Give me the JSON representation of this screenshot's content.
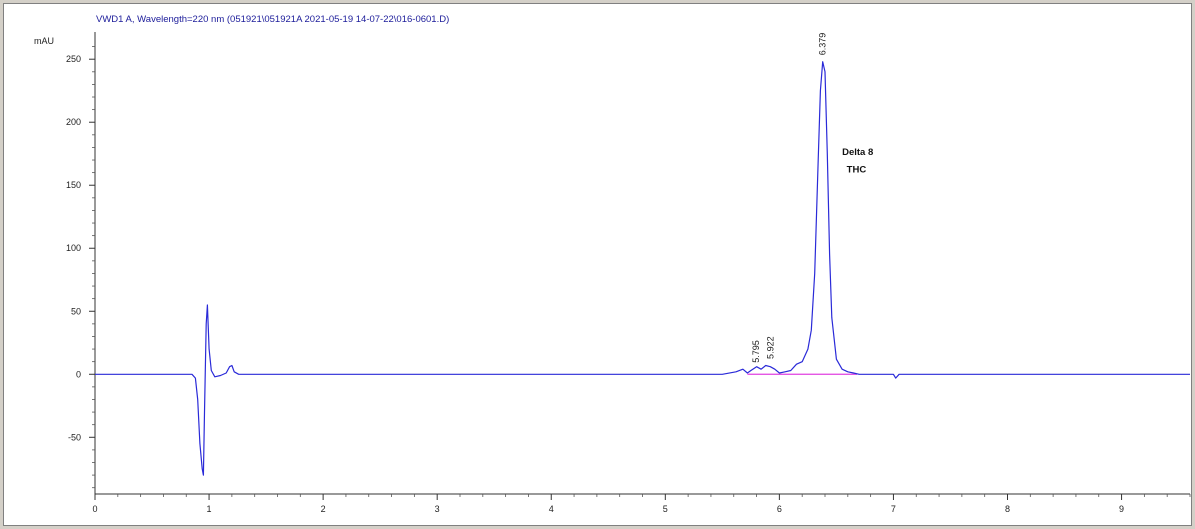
{
  "chart_data": {
    "type": "line",
    "title": "VWD1 A, Wavelength=220 nm (051921\\051921A 2021-05-19 14-07-22\\016-0601.D)",
    "ylabel": "mAU",
    "xlabel": "",
    "xlim": [
      0,
      9.6
    ],
    "ylim": [
      -95,
      270
    ],
    "x_ticks": [
      0,
      1,
      2,
      3,
      4,
      5,
      6,
      7,
      8,
      9
    ],
    "y_ticks": [
      -50,
      0,
      50,
      100,
      150,
      200,
      250
    ],
    "series": [
      {
        "color": "#2a2ad8",
        "x": [
          0,
          0.5,
          0.85,
          0.88,
          0.9,
          0.92,
          0.94,
          0.95,
          0.96,
          0.975,
          0.985,
          1.0,
          1.02,
          1.05,
          1.1,
          1.15,
          1.18,
          1.2,
          1.22,
          1.26,
          1.5,
          2.0,
          3.0,
          4.0,
          5.0,
          5.5,
          5.62,
          5.68,
          5.72,
          5.75,
          5.8,
          5.84,
          5.88,
          5.92,
          5.96,
          6.0,
          6.05,
          6.1,
          6.15,
          6.2,
          6.25,
          6.28,
          6.31,
          6.34,
          6.36,
          6.38,
          6.4,
          6.42,
          6.44,
          6.46,
          6.5,
          6.55,
          6.6,
          6.65,
          6.7,
          6.8,
          7.0,
          7.02,
          7.05,
          8.0,
          9.0,
          9.6
        ],
        "y": [
          0,
          0,
          0,
          -3,
          -20,
          -55,
          -75,
          -80,
          -30,
          40,
          55,
          20,
          3,
          -2,
          -1,
          1,
          6,
          7,
          2,
          0,
          0,
          0,
          0,
          0,
          0,
          0,
          2,
          4,
          1,
          3,
          6,
          4,
          7,
          6,
          4,
          1,
          2,
          3,
          8,
          10,
          20,
          35,
          80,
          170,
          225,
          248,
          240,
          175,
          95,
          45,
          12,
          4,
          2,
          1,
          0,
          0,
          0,
          -3,
          0,
          0,
          0,
          0
        ]
      }
    ],
    "baseline": {
      "color": "#e040e0",
      "x": [
        5.72,
        6.68
      ],
      "y": [
        0,
        0
      ]
    },
    "peak_labels": [
      {
        "text": "5.795",
        "x": 5.795,
        "y": 6
      },
      {
        "text": "5.922",
        "x": 5.922,
        "y": 9
      },
      {
        "text": "6.379",
        "x": 6.379,
        "y": 250
      }
    ],
    "annotations": [
      {
        "text": "Delta 8",
        "x": 6.55,
        "y": 174
      },
      {
        "text": "THC",
        "x": 6.59,
        "y": 160
      }
    ]
  }
}
